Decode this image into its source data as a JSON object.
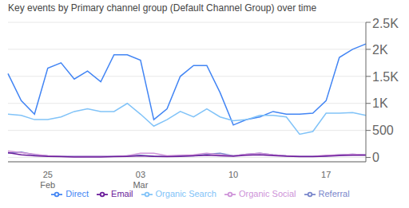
{
  "chart_data": {
    "type": "line",
    "title": "Key events by Primary channel group (Default Channel Group) over time",
    "categories": [
      null,
      null,
      null,
      "25\nFeb",
      null,
      null,
      null,
      null,
      null,
      null,
      "03\nMar",
      null,
      null,
      null,
      null,
      null,
      null,
      "10",
      null,
      null,
      null,
      null,
      null,
      null,
      "17",
      null,
      null,
      null
    ],
    "series": [
      {
        "name": "Direct",
        "color": "#4285f4",
        "values": [
          1550,
          1050,
          800,
          1650,
          1750,
          1450,
          1600,
          1400,
          1900,
          1900,
          1800,
          700,
          900,
          1500,
          1700,
          1700,
          1200,
          600,
          700,
          750,
          850,
          800,
          800,
          820,
          1050,
          1850,
          2000,
          2100
        ]
      },
      {
        "name": "Organic Search",
        "color": "#81c3f8",
        "values": [
          800,
          780,
          700,
          700,
          750,
          850,
          900,
          850,
          850,
          1000,
          800,
          580,
          700,
          850,
          750,
          900,
          750,
          680,
          700,
          780,
          780,
          750,
          430,
          480,
          820,
          820,
          830,
          780
        ]
      },
      {
        "name": "Referral",
        "color": "#7986cb",
        "values": [
          80,
          100,
          50,
          30,
          20,
          20,
          20,
          20,
          20,
          30,
          40,
          25,
          20,
          30,
          30,
          60,
          80,
          30,
          60,
          80,
          50,
          30,
          20,
          20,
          30,
          50,
          60,
          50
        ]
      },
      {
        "name": "Organic Social",
        "color": "#ce93d8",
        "values": [
          120,
          90,
          60,
          30,
          20,
          15,
          20,
          20,
          20,
          30,
          80,
          80,
          30,
          40,
          50,
          80,
          50,
          30,
          60,
          80,
          50,
          30,
          20,
          20,
          40,
          50,
          60,
          50
        ]
      },
      {
        "name": "Email",
        "color": "#6a1b9a",
        "values": [
          90,
          50,
          30,
          20,
          15,
          10,
          10,
          10,
          15,
          20,
          30,
          20,
          15,
          20,
          30,
          40,
          30,
          25,
          40,
          50,
          35,
          25,
          15,
          15,
          25,
          35,
          40,
          40
        ]
      }
    ],
    "ylim": [
      -80,
      2500
    ],
    "yticks": [
      0,
      500,
      {
        "value": 1000,
        "label": "1K"
      },
      {
        "value": 1500,
        "label": "1.5K"
      },
      {
        "value": 2000,
        "label": "2K"
      },
      {
        "value": 2500,
        "label": "2.5K"
      }
    ],
    "grid": true,
    "legend": "bottom"
  }
}
